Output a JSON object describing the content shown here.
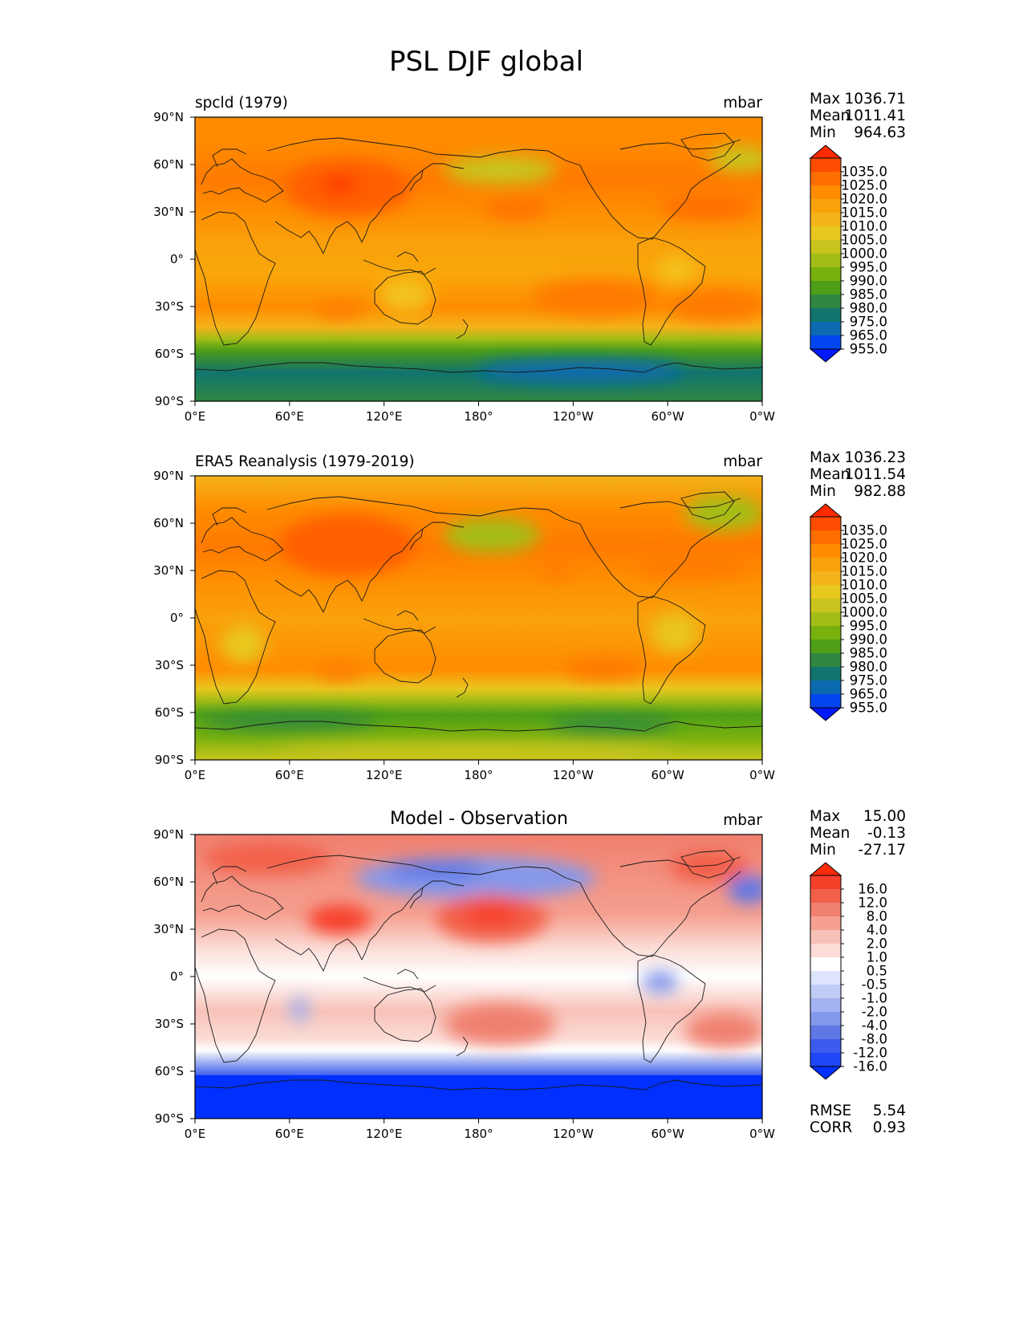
{
  "chart_data": {
    "type": "contour-map",
    "title": "PSL DJF global",
    "x_ticks": [
      "0°E",
      "60°E",
      "120°E",
      "180°",
      "120°W",
      "60°W",
      "0°W"
    ],
    "y_ticks": [
      "90°N",
      "60°N",
      "30°N",
      "0°",
      "30°S",
      "60°S",
      "90°S"
    ],
    "panels": [
      {
        "id": "model",
        "title_left": "spcld (1979)",
        "units": "mbar",
        "stats": {
          "labels": [
            "Max",
            "Mean",
            "Min"
          ],
          "values": [
            "1036.71",
            "1011.41",
            "964.63"
          ]
        },
        "colorbar": {
          "levels": [
            "1035.0",
            "1025.0",
            "1020.0",
            "1015.0",
            "1010.0",
            "1005.0",
            "1000.0",
            "995.0",
            "990.0",
            "985.0",
            "980.0",
            "975.0",
            "965.0",
            "955.0"
          ],
          "colors": [
            "#ff2a00",
            "#ff4c00",
            "#ff6e00",
            "#ff8c00",
            "#f9a10b",
            "#f3b31b",
            "#e8c71f",
            "#c9c41d",
            "#a4bd16",
            "#78b10e",
            "#4e9f17",
            "#2f8741",
            "#11756e",
            "#0c6bb0",
            "#0346f0",
            "#0019ff"
          ]
        }
      },
      {
        "id": "obs",
        "title_left": "ERA5 Reanalysis (1979-2019)",
        "units": "mbar",
        "stats": {
          "labels": [
            "Max",
            "Mean",
            "Min"
          ],
          "values": [
            "1036.23",
            "1011.54",
            "982.88"
          ]
        },
        "colorbar": {
          "levels": [
            "1035.0",
            "1025.0",
            "1020.0",
            "1015.0",
            "1010.0",
            "1005.0",
            "1000.0",
            "995.0",
            "990.0",
            "985.0",
            "980.0",
            "975.0",
            "965.0",
            "955.0"
          ],
          "colors": [
            "#ff2a00",
            "#ff4c00",
            "#ff6e00",
            "#ff8c00",
            "#f9a10b",
            "#f3b31b",
            "#e8c71f",
            "#c9c41d",
            "#a4bd16",
            "#78b10e",
            "#4e9f17",
            "#2f8741",
            "#11756e",
            "#0c6bb0",
            "#0346f0",
            "#0019ff"
          ]
        }
      },
      {
        "id": "diff",
        "title_center": "Model - Observation",
        "units": "mbar",
        "stats": {
          "labels": [
            "Max",
            "Mean",
            "Min"
          ],
          "values": [
            "15.00",
            "-0.13",
            "-27.17"
          ]
        },
        "extra_stats": {
          "labels": [
            "RMSE",
            "CORR"
          ],
          "values": [
            "5.54",
            "0.93"
          ]
        },
        "colorbar": {
          "levels": [
            "16.0",
            "12.0",
            "8.0",
            "4.0",
            "2.0",
            "1.0",
            "0.5",
            "-0.5",
            "-1.0",
            "-2.0",
            "-4.0",
            "-8.0",
            "-12.0",
            "-16.0"
          ],
          "colors": [
            "#ff2a0a",
            "#f7402a",
            "#f2604a",
            "#f08070",
            "#f5a090",
            "#f8c2b8",
            "#fbdcd6",
            "#ffffff",
            "#dde4fb",
            "#c0ccf6",
            "#a3b3f1",
            "#8498eb",
            "#5f78e6",
            "#3c5cee",
            "#2046f8",
            "#0030ff"
          ]
        }
      }
    ]
  }
}
